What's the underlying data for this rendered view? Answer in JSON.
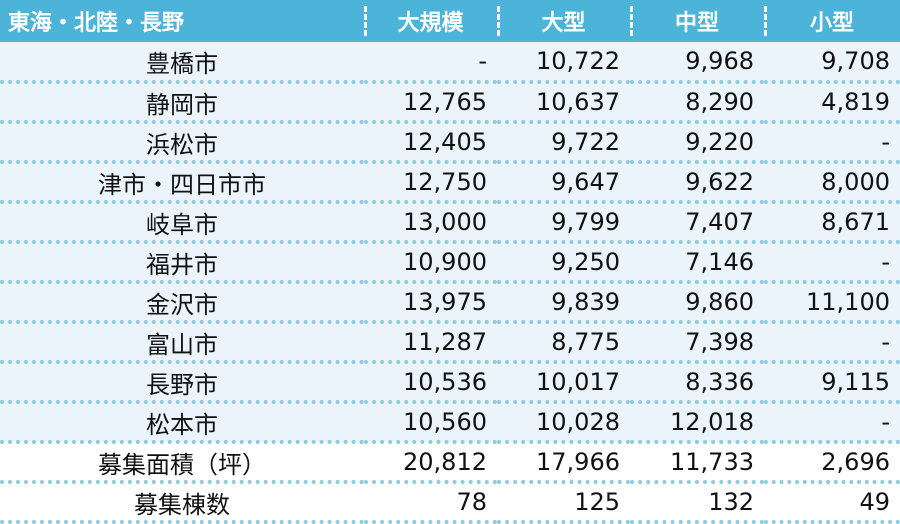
{
  "header": {
    "region": "東海・北陸・長野",
    "columns": [
      "大規模",
      "大型",
      "中型",
      "小型"
    ]
  },
  "rows": [
    {
      "city": "豊橋市",
      "values": [
        "-",
        "10,722",
        "9,968",
        "9,708"
      ]
    },
    {
      "city": "静岡市",
      "values": [
        "12,765",
        "10,637",
        "8,290",
        "4,819"
      ]
    },
    {
      "city": "浜松市",
      "values": [
        "12,405",
        "9,722",
        "9,220",
        "-"
      ]
    },
    {
      "city": "津市・四日市市",
      "values": [
        "12,750",
        "9,647",
        "9,622",
        "8,000"
      ]
    },
    {
      "city": "岐阜市",
      "values": [
        "13,000",
        "9,799",
        "7,407",
        "8,671"
      ]
    },
    {
      "city": "福井市",
      "values": [
        "10,900",
        "9,250",
        "7,146",
        "-"
      ]
    },
    {
      "city": "金沢市",
      "values": [
        "13,975",
        "9,839",
        "9,860",
        "11,100"
      ]
    },
    {
      "city": "富山市",
      "values": [
        "11,287",
        "8,775",
        "7,398",
        "-"
      ]
    },
    {
      "city": "長野市",
      "values": [
        "10,536",
        "10,017",
        "8,336",
        "9,115"
      ]
    },
    {
      "city": "松本市",
      "values": [
        "10,560",
        "10,028",
        "12,018",
        "-"
      ]
    }
  ],
  "summary": [
    {
      "city": "募集面積（坪）",
      "values": [
        "20,812",
        "17,966",
        "11,733",
        "2,696"
      ]
    },
    {
      "city": "募集棟数",
      "values": [
        "78",
        "125",
        "132",
        "49"
      ]
    }
  ]
}
